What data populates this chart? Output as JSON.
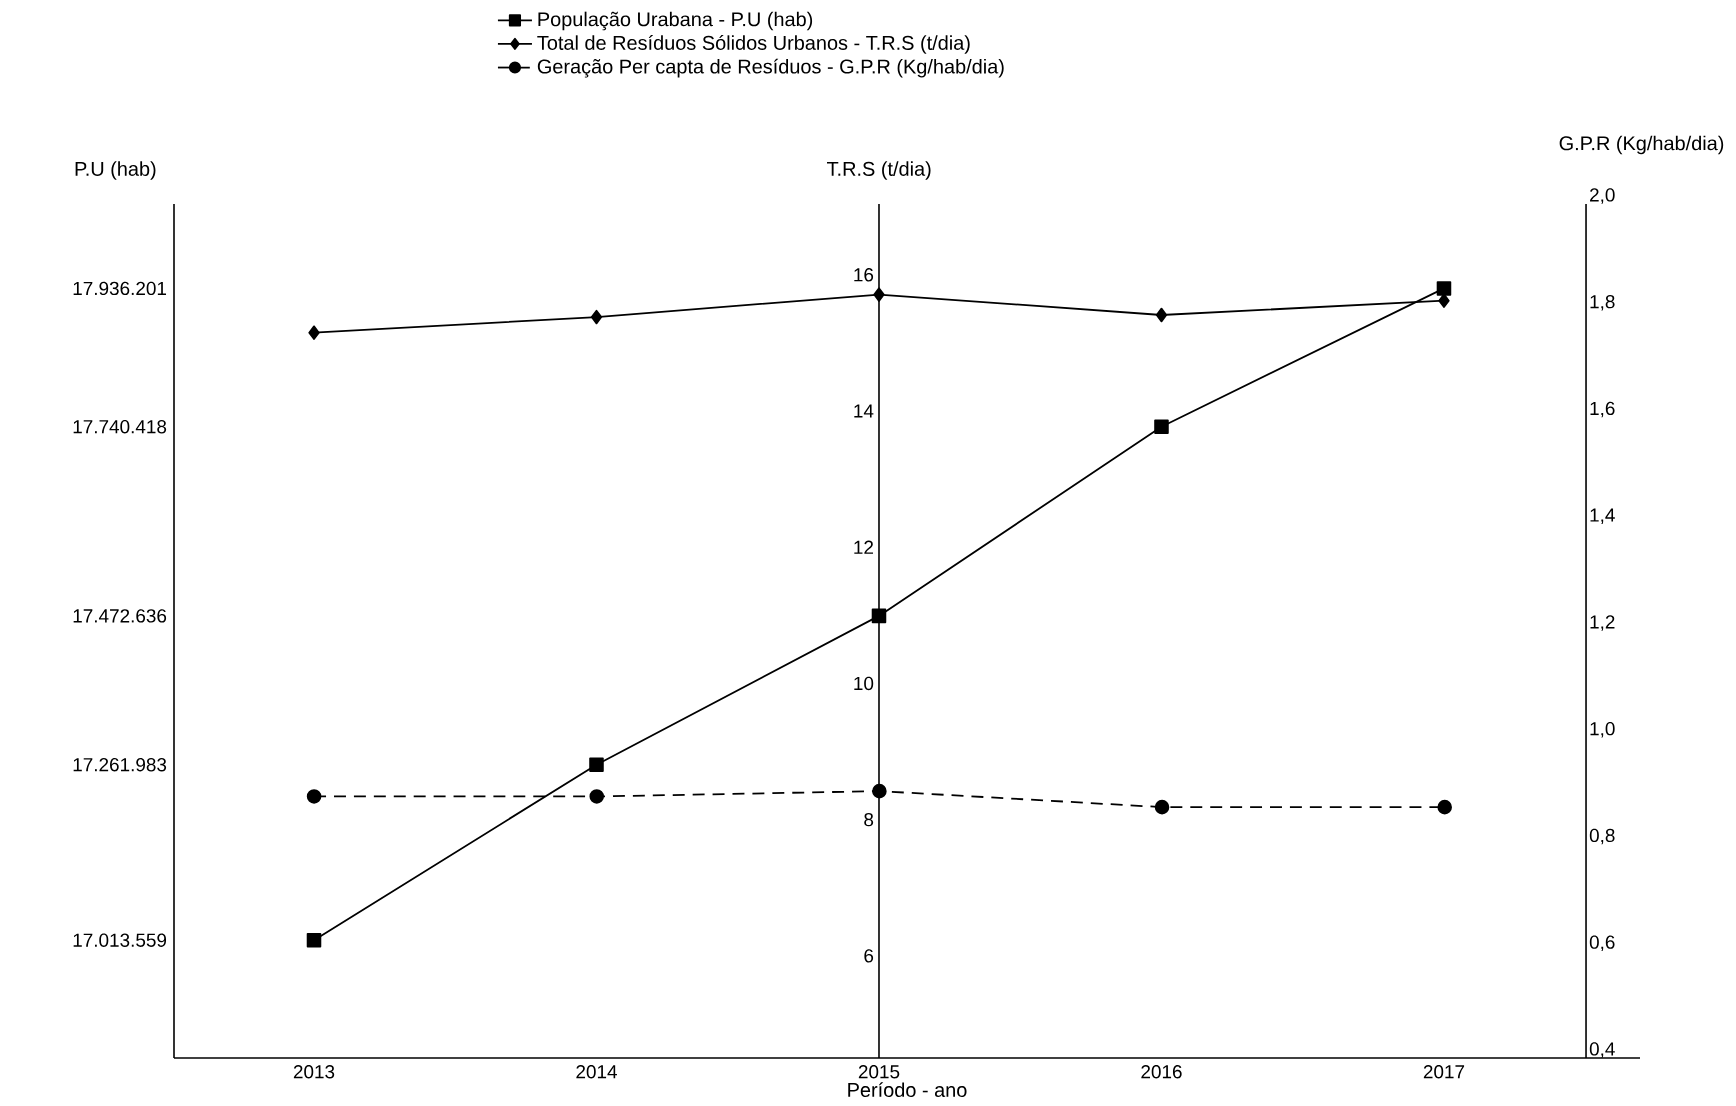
{
  "chart_data": {
    "type": "line",
    "categories": [
      "2013",
      "2014",
      "2015",
      "2016",
      "2017"
    ],
    "xlabel": "Período - ano",
    "ylabel": "P.U (hab)",
    "y2label": "T.R.S (t/dia)",
    "y3label": "G.P.R (Kg/hab/dia)",
    "ylim": [
      16846800,
      18055700
    ],
    "yticks": [
      {
        "value": 17013559,
        "label": "17.013.559"
      },
      {
        "value": 17261983,
        "label": "17.261.983"
      },
      {
        "value": 17472636,
        "label": "17.472.636"
      },
      {
        "value": 17740418,
        "label": "17.740.418"
      },
      {
        "value": 17936201,
        "label": "17.936.201"
      }
    ],
    "y2lim": [
      4.5,
      17.04
    ],
    "y2ticks": [
      6,
      8,
      10,
      12,
      14,
      16
    ],
    "y3lim": [
      0.4,
      2.0
    ],
    "y3ticks": [
      {
        "value": 0.4,
        "label": "0,4"
      },
      {
        "value": 0.6,
        "label": "0,6"
      },
      {
        "value": 0.8,
        "label": "0,8"
      },
      {
        "value": 1.0,
        "label": "1,0"
      },
      {
        "value": 1.2,
        "label": "1,2"
      },
      {
        "value": 1.4,
        "label": "1,4"
      },
      {
        "value": 1.6,
        "label": "1,6"
      },
      {
        "value": 1.8,
        "label": "1,8"
      },
      {
        "value": 2.0,
        "label": "2,0"
      }
    ],
    "legend": "top",
    "series": [
      {
        "name": "População Urabana - P.U (hab)",
        "color": "#000000",
        "axis": "y",
        "marker": "square",
        "line_style": "solid",
        "values": [
          17013559,
          17261983,
          17472636,
          17740418,
          17936201
        ]
      },
      {
        "name": "Total de Resíduos Sólidos Urbanos - T.R.S (t/dia)",
        "color": "#000000",
        "axis": "y2",
        "marker": "diamond",
        "line_style": "solid",
        "values": [
          15.15,
          15.38,
          15.71,
          15.41,
          15.62
        ]
      },
      {
        "name": "Geração Per capta de Resíduos - G.P.R (Kg/hab/dia)",
        "color": "#000000",
        "axis": "y3",
        "marker": "circle",
        "line_style": "dashed",
        "values": [
          0.89,
          0.89,
          0.9,
          0.87,
          0.87
        ]
      }
    ]
  }
}
